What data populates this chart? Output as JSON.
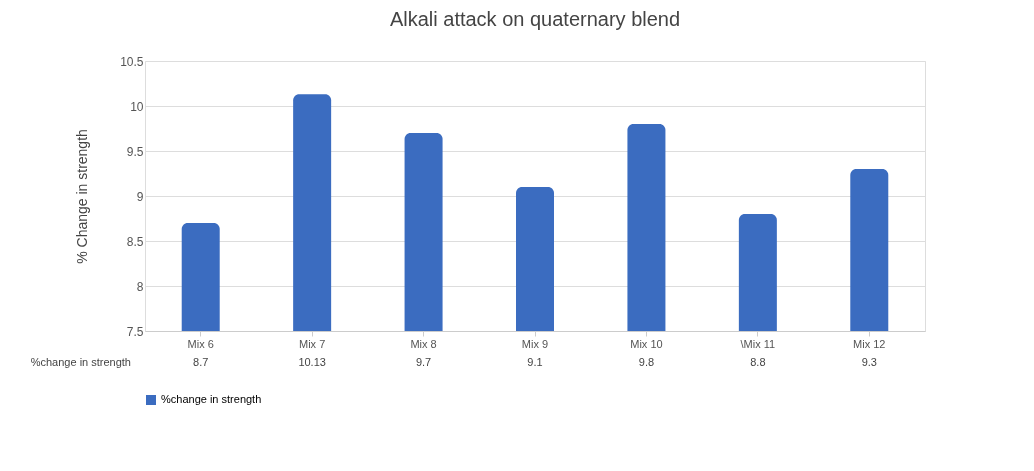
{
  "chart_data": {
    "type": "bar",
    "title": "Alkali attack on quaternary blend",
    "ylabel": "% Change in  strength",
    "categories": [
      "Mix 6",
      "Mix 7",
      "Mix 8",
      "Mix 9",
      "Mix 10",
      "\\Mix 11",
      "Mix 12"
    ],
    "series": [
      {
        "name": "%change in strength",
        "color": "#3b6cc0",
        "values": [
          8.7,
          10.13,
          9.7,
          9.1,
          9.8,
          8.8,
          9.3
        ]
      }
    ],
    "ylim": [
      7.5,
      10.5
    ],
    "yticks": [
      7.5,
      8,
      8.5,
      9,
      9.5,
      10,
      10.5
    ],
    "grid": "y",
    "legend": "bottom",
    "data_labels": true
  }
}
